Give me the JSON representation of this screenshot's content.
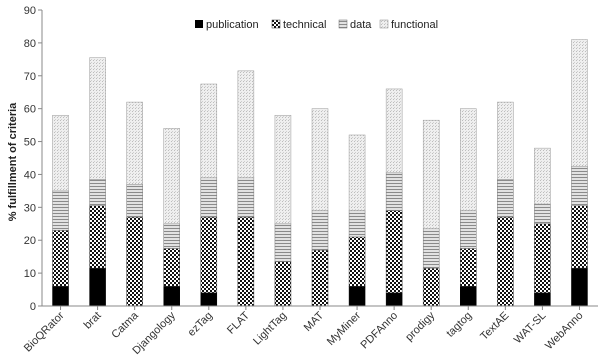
{
  "chart_data": {
    "type": "bar",
    "stacked": true,
    "ylabel": "% fulfillment of criteria",
    "ylim": [
      0,
      90
    ],
    "yticks": [
      "0",
      "10",
      "20",
      "30",
      "40",
      "50",
      "60",
      "70",
      "80",
      "90"
    ],
    "legend_position": "top-center",
    "grid": false,
    "categories": [
      "BioQRator",
      "brat",
      "Catma",
      "Djangology",
      "ezTag",
      "FLAT",
      "LightTag",
      "MAT",
      "MyMiner",
      "PDFAnno",
      "prodigy",
      "tagtog",
      "TextAE",
      "WAT-SL",
      "WebAnno"
    ],
    "series": [
      {
        "name": "publication",
        "values": [
          6,
          11.5,
          0,
          6,
          4,
          0,
          0,
          0,
          6,
          4,
          0,
          6,
          0,
          4,
          11.5
        ]
      },
      {
        "name": "technical",
        "values": [
          17,
          19,
          27,
          11.5,
          23,
          27,
          13.5,
          17,
          15,
          25,
          11.5,
          11.5,
          27,
          21,
          19
        ]
      },
      {
        "name": "data",
        "values": [
          12,
          8,
          10,
          7.5,
          12,
          12,
          11.5,
          12,
          8,
          11.5,
          12,
          11.5,
          11.5,
          6,
          12
        ]
      },
      {
        "name": "functional",
        "values": [
          23,
          37,
          25,
          29,
          28.5,
          32.5,
          33,
          31,
          23,
          25.5,
          33,
          31,
          23.5,
          17,
          38.5
        ]
      }
    ]
  }
}
